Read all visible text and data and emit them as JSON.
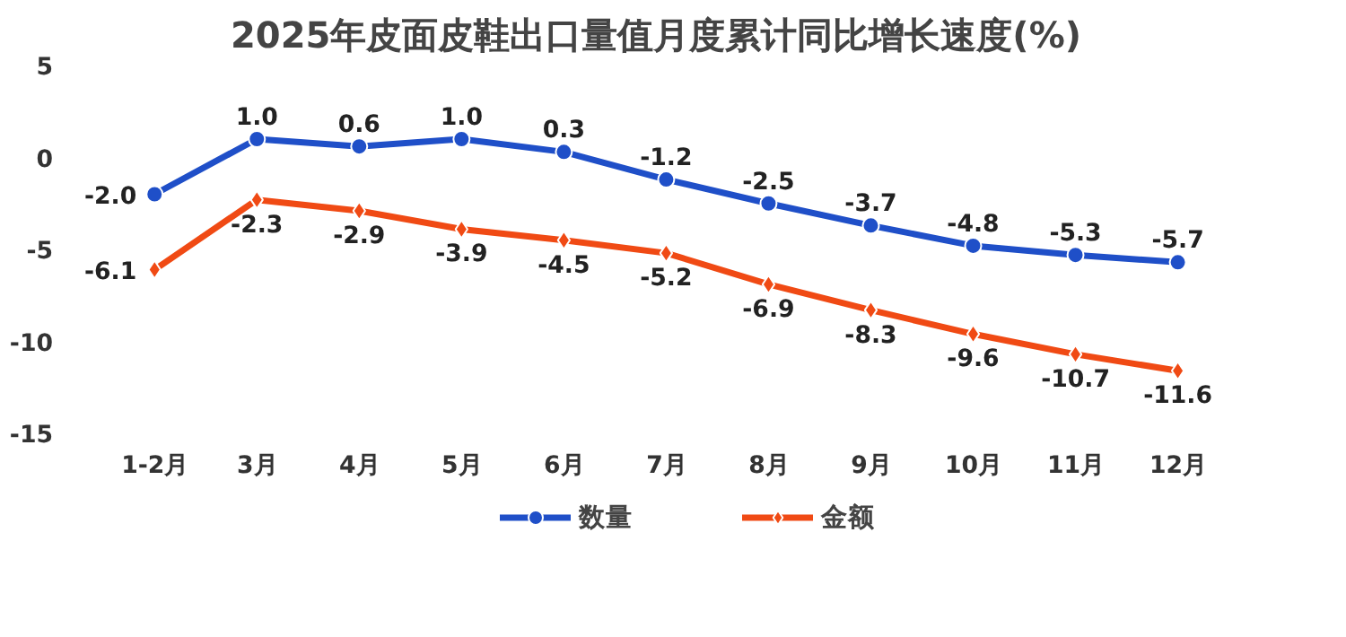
{
  "chart_data": {
    "type": "line",
    "title": "2025年皮面皮鞋出口量值月度累计同比增长速度(%)",
    "categories": [
      "1-2月",
      "3月",
      "4月",
      "5月",
      "6月",
      "7月",
      "8月",
      "9月",
      "10月",
      "11月",
      "12月"
    ],
    "series": [
      {
        "name": "数量",
        "color": "#1f4fc8",
        "marker": "circle",
        "values": [
          -2.0,
          1.0,
          0.6,
          1.0,
          0.3,
          -1.2,
          -2.5,
          -3.7,
          -4.8,
          -5.3,
          -5.7
        ],
        "value_labels": [
          "-2.0",
          "1.0",
          "0.6",
          "1.0",
          "0.3",
          "-1.2",
          "-2.5",
          "-3.7",
          "-4.8",
          "-5.3",
          "-5.7"
        ]
      },
      {
        "name": "金额",
        "color": "#f04a14",
        "marker": "diamond",
        "values": [
          -6.1,
          -2.3,
          -2.9,
          -3.9,
          -4.5,
          -5.2,
          -6.9,
          -8.3,
          -9.6,
          -10.7,
          -11.6
        ],
        "value_labels": [
          "-6.1",
          "-2.3",
          "-2.9",
          "-3.9",
          "-4.5",
          "-5.2",
          "-6.9",
          "-8.3",
          "-9.6",
          "-10.7",
          "-11.6"
        ]
      }
    ],
    "ylim": [
      -15,
      5
    ],
    "yticks": [
      -15,
      -10,
      -5,
      0,
      5
    ],
    "grid": false,
    "legend": "bottom",
    "line_style": "solid"
  }
}
